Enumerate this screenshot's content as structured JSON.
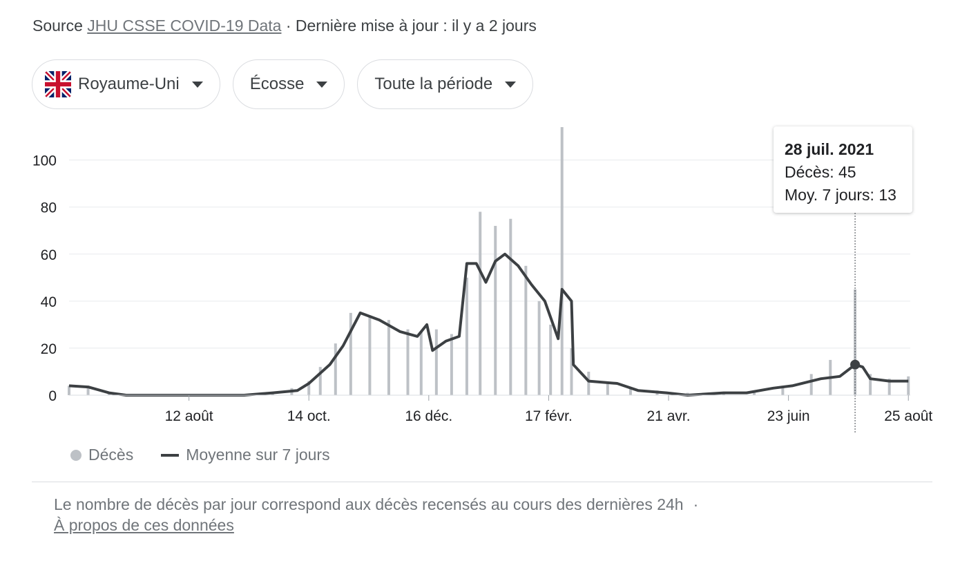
{
  "source": {
    "prefix": "Source",
    "link": "JHU CSSE COVID-19 Data",
    "updated": "· Dernière mise à jour : il y a 2 jours"
  },
  "filters": {
    "country": "Royaume-Uni",
    "region": "Écosse",
    "period": "Toute la période"
  },
  "colors": {
    "bars": "#bdc1c6",
    "line": "#3c4043",
    "grid": "#e8eaed",
    "flag_blue": "#012169",
    "flag_red": "#C8102E"
  },
  "tooltip": {
    "date": "28 juil. 2021",
    "deaths_label": "Décès: 45",
    "avg_label": "Moy. 7 jours: 13"
  },
  "legend": {
    "deaths": "Décès",
    "average": "Moyenne sur 7 jours"
  },
  "footnote": {
    "text": "Le nombre de décès par jour correspond aux décès recensés au cours des dernières 24h",
    "separator": "·",
    "link": "À propos de ces données"
  },
  "chart_data": {
    "type": "bar",
    "overlay_type": "line",
    "x_start": "2020-06-10",
    "x_end": "2021-08-26",
    "ylim": [
      0,
      114
    ],
    "yticks": [
      0,
      20,
      40,
      60,
      80,
      100
    ],
    "xticks": [
      {
        "label": "12 août",
        "date": "2020-08-12"
      },
      {
        "label": "14 oct.",
        "date": "2020-10-14"
      },
      {
        "label": "16 déc.",
        "date": "2020-12-16"
      },
      {
        "label": "17 févr.",
        "date": "2021-02-17"
      },
      {
        "label": "21 avr.",
        "date": "2021-04-21"
      },
      {
        "label": "23 juin",
        "date": "2021-06-23"
      },
      {
        "label": "25 août",
        "date": "2021-08-25"
      }
    ],
    "grid": true,
    "legend_position": "bottom-left",
    "selected": {
      "date": "2021-07-28",
      "deaths": 45,
      "avg7": 13
    },
    "series": [
      {
        "name": "Décès",
        "points": [
          [
            "2020-06-10",
            4
          ],
          [
            "2020-06-20",
            4
          ],
          [
            "2020-07-01",
            1
          ],
          [
            "2020-07-15",
            0
          ],
          [
            "2020-08-01",
            0
          ],
          [
            "2020-08-20",
            0
          ],
          [
            "2020-09-10",
            0
          ],
          [
            "2020-09-25",
            1
          ],
          [
            "2020-10-05",
            3
          ],
          [
            "2020-10-14",
            6
          ],
          [
            "2020-10-20",
            12
          ],
          [
            "2020-10-28",
            22
          ],
          [
            "2020-11-05",
            35
          ],
          [
            "2020-11-15",
            34
          ],
          [
            "2020-11-25",
            32
          ],
          [
            "2020-12-05",
            28
          ],
          [
            "2020-12-12",
            27
          ],
          [
            "2020-12-20",
            28
          ],
          [
            "2020-12-28",
            26
          ],
          [
            "2021-01-05",
            50
          ],
          [
            "2021-01-12",
            78
          ],
          [
            "2021-01-20",
            72
          ],
          [
            "2021-01-28",
            75
          ],
          [
            "2021-02-05",
            55
          ],
          [
            "2021-02-12",
            40
          ],
          [
            "2021-02-18",
            30
          ],
          [
            "2021-02-24",
            114
          ],
          [
            "2021-03-01",
            20
          ],
          [
            "2021-03-10",
            10
          ],
          [
            "2021-03-20",
            5
          ],
          [
            "2021-04-01",
            3
          ],
          [
            "2021-04-15",
            2
          ],
          [
            "2021-05-01",
            1
          ],
          [
            "2021-05-20",
            1
          ],
          [
            "2021-06-05",
            2
          ],
          [
            "2021-06-20",
            4
          ],
          [
            "2021-07-05",
            9
          ],
          [
            "2021-07-15",
            15
          ],
          [
            "2021-07-28",
            45
          ],
          [
            "2021-08-05",
            9
          ],
          [
            "2021-08-15",
            7
          ],
          [
            "2021-08-25",
            8
          ]
        ]
      },
      {
        "name": "Moyenne sur 7 jours",
        "points": [
          [
            "2020-06-10",
            4
          ],
          [
            "2020-06-20",
            3.5
          ],
          [
            "2020-07-01",
            1
          ],
          [
            "2020-07-10",
            0
          ],
          [
            "2020-09-10",
            0
          ],
          [
            "2020-09-25",
            1
          ],
          [
            "2020-10-08",
            2
          ],
          [
            "2020-10-14",
            5
          ],
          [
            "2020-10-25",
            13
          ],
          [
            "2020-11-01",
            21
          ],
          [
            "2020-11-10",
            35
          ],
          [
            "2020-11-20",
            32
          ],
          [
            "2020-12-01",
            27
          ],
          [
            "2020-12-10",
            25
          ],
          [
            "2020-12-15",
            30
          ],
          [
            "2020-12-18",
            19
          ],
          [
            "2020-12-25",
            23
          ],
          [
            "2021-01-01",
            25
          ],
          [
            "2021-01-05",
            56
          ],
          [
            "2021-01-10",
            56
          ],
          [
            "2021-01-15",
            48
          ],
          [
            "2021-01-20",
            57
          ],
          [
            "2021-01-25",
            60
          ],
          [
            "2021-02-01",
            55
          ],
          [
            "2021-02-08",
            47
          ],
          [
            "2021-02-15",
            40
          ],
          [
            "2021-02-22",
            24
          ],
          [
            "2021-02-24",
            45
          ],
          [
            "2021-03-01",
            40
          ],
          [
            "2021-03-02",
            13
          ],
          [
            "2021-03-10",
            6
          ],
          [
            "2021-03-25",
            5
          ],
          [
            "2021-04-05",
            2
          ],
          [
            "2021-04-20",
            1
          ],
          [
            "2021-05-01",
            0
          ],
          [
            "2021-05-20",
            1
          ],
          [
            "2021-06-01",
            1
          ],
          [
            "2021-06-15",
            3
          ],
          [
            "2021-06-25",
            4
          ],
          [
            "2021-07-10",
            7
          ],
          [
            "2021-07-20",
            8
          ],
          [
            "2021-07-28",
            13
          ],
          [
            "2021-08-01",
            12
          ],
          [
            "2021-08-05",
            7
          ],
          [
            "2021-08-15",
            6
          ],
          [
            "2021-08-25",
            6
          ]
        ]
      }
    ]
  }
}
